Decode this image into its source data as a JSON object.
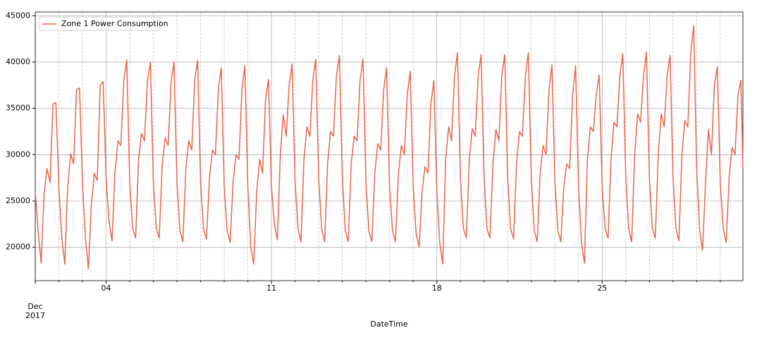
{
  "chart_data": {
    "type": "line",
    "xlabel": "DateTime",
    "x": [
      "2017-12-01 00:00",
      "2017-12-01 03:00",
      "2017-12-01 06:00",
      "2017-12-01 09:00",
      "2017-12-01 12:00",
      "2017-12-01 15:00",
      "2017-12-01 18:00",
      "2017-12-01 21:00",
      "2017-12-02 00:00",
      "2017-12-02 03:00",
      "2017-12-02 06:00",
      "2017-12-02 09:00",
      "2017-12-02 12:00",
      "2017-12-02 15:00",
      "2017-12-02 18:00",
      "2017-12-02 21:00",
      "2017-12-03 00:00",
      "2017-12-03 03:00",
      "2017-12-03 06:00",
      "2017-12-03 09:00",
      "2017-12-03 12:00",
      "2017-12-03 15:00",
      "2017-12-03 18:00",
      "2017-12-03 21:00",
      "2017-12-04 00:00",
      "2017-12-04 03:00",
      "2017-12-04 06:00",
      "2017-12-04 09:00",
      "2017-12-04 12:00",
      "2017-12-04 15:00",
      "2017-12-04 18:00",
      "2017-12-04 21:00",
      "2017-12-05 00:00",
      "2017-12-05 03:00",
      "2017-12-05 06:00",
      "2017-12-05 09:00",
      "2017-12-05 12:00",
      "2017-12-05 15:00",
      "2017-12-05 18:00",
      "2017-12-05 21:00",
      "2017-12-06 00:00",
      "2017-12-06 03:00",
      "2017-12-06 06:00",
      "2017-12-06 09:00",
      "2017-12-06 12:00",
      "2017-12-06 15:00",
      "2017-12-06 18:00",
      "2017-12-06 21:00",
      "2017-12-07 00:00",
      "2017-12-07 03:00",
      "2017-12-07 06:00",
      "2017-12-07 09:00",
      "2017-12-07 12:00",
      "2017-12-07 15:00",
      "2017-12-07 18:00",
      "2017-12-07 21:00",
      "2017-12-08 00:00",
      "2017-12-08 03:00",
      "2017-12-08 06:00",
      "2017-12-08 09:00",
      "2017-12-08 12:00",
      "2017-12-08 15:00",
      "2017-12-08 18:00",
      "2017-12-08 21:00",
      "2017-12-09 00:00",
      "2017-12-09 03:00",
      "2017-12-09 06:00",
      "2017-12-09 09:00",
      "2017-12-09 12:00",
      "2017-12-09 15:00",
      "2017-12-09 18:00",
      "2017-12-09 21:00",
      "2017-12-10 00:00",
      "2017-12-10 03:00",
      "2017-12-10 06:00",
      "2017-12-10 09:00",
      "2017-12-10 12:00",
      "2017-12-10 15:00",
      "2017-12-10 18:00",
      "2017-12-10 21:00",
      "2017-12-11 00:00",
      "2017-12-11 03:00",
      "2017-12-11 06:00",
      "2017-12-11 09:00",
      "2017-12-11 12:00",
      "2017-12-11 15:00",
      "2017-12-11 18:00",
      "2017-12-11 21:00",
      "2017-12-12 00:00",
      "2017-12-12 03:00",
      "2017-12-12 06:00",
      "2017-12-12 09:00",
      "2017-12-12 12:00",
      "2017-12-12 15:00",
      "2017-12-12 18:00",
      "2017-12-12 21:00",
      "2017-12-13 00:00",
      "2017-12-13 03:00",
      "2017-12-13 06:00",
      "2017-12-13 09:00",
      "2017-12-13 12:00",
      "2017-12-13 15:00",
      "2017-12-13 18:00",
      "2017-12-13 21:00",
      "2017-12-14 00:00",
      "2017-12-14 03:00",
      "2017-12-14 06:00",
      "2017-12-14 09:00",
      "2017-12-14 12:00",
      "2017-12-14 15:00",
      "2017-12-14 18:00",
      "2017-12-14 21:00",
      "2017-12-15 00:00",
      "2017-12-15 03:00",
      "2017-12-15 06:00",
      "2017-12-15 09:00",
      "2017-12-15 12:00",
      "2017-12-15 15:00",
      "2017-12-15 18:00",
      "2017-12-15 21:00",
      "2017-12-16 00:00",
      "2017-12-16 03:00",
      "2017-12-16 06:00",
      "2017-12-16 09:00",
      "2017-12-16 12:00",
      "2017-12-16 15:00",
      "2017-12-16 18:00",
      "2017-12-16 21:00",
      "2017-12-17 00:00",
      "2017-12-17 03:00",
      "2017-12-17 06:00",
      "2017-12-17 09:00",
      "2017-12-17 12:00",
      "2017-12-17 15:00",
      "2017-12-17 18:00",
      "2017-12-17 21:00",
      "2017-12-18 00:00",
      "2017-12-18 03:00",
      "2017-12-18 06:00",
      "2017-12-18 09:00",
      "2017-12-18 12:00",
      "2017-12-18 15:00",
      "2017-12-18 18:00",
      "2017-12-18 21:00",
      "2017-12-19 00:00",
      "2017-12-19 03:00",
      "2017-12-19 06:00",
      "2017-12-19 09:00",
      "2017-12-19 12:00",
      "2017-12-19 15:00",
      "2017-12-19 18:00",
      "2017-12-19 21:00",
      "2017-12-20 00:00",
      "2017-12-20 03:00",
      "2017-12-20 06:00",
      "2017-12-20 09:00",
      "2017-12-20 12:00",
      "2017-12-20 15:00",
      "2017-12-20 18:00",
      "2017-12-20 21:00",
      "2017-12-21 00:00",
      "2017-12-21 03:00",
      "2017-12-21 06:00",
      "2017-12-21 09:00",
      "2017-12-21 12:00",
      "2017-12-21 15:00",
      "2017-12-21 18:00",
      "2017-12-21 21:00",
      "2017-12-22 00:00",
      "2017-12-22 03:00",
      "2017-12-22 06:00",
      "2017-12-22 09:00",
      "2017-12-22 12:00",
      "2017-12-22 15:00",
      "2017-12-22 18:00",
      "2017-12-22 21:00",
      "2017-12-23 00:00",
      "2017-12-23 03:00",
      "2017-12-23 06:00",
      "2017-12-23 09:00",
      "2017-12-23 12:00",
      "2017-12-23 15:00",
      "2017-12-23 18:00",
      "2017-12-23 21:00",
      "2017-12-24 00:00",
      "2017-12-24 03:00",
      "2017-12-24 06:00",
      "2017-12-24 09:00",
      "2017-12-24 12:00",
      "2017-12-24 15:00",
      "2017-12-24 18:00",
      "2017-12-24 21:00",
      "2017-12-25 00:00",
      "2017-12-25 03:00",
      "2017-12-25 06:00",
      "2017-12-25 09:00",
      "2017-12-25 12:00",
      "2017-12-25 15:00",
      "2017-12-25 18:00",
      "2017-12-25 21:00",
      "2017-12-26 00:00",
      "2017-12-26 03:00",
      "2017-12-26 06:00",
      "2017-12-26 09:00",
      "2017-12-26 12:00",
      "2017-12-26 15:00",
      "2017-12-26 18:00",
      "2017-12-26 21:00",
      "2017-12-27 00:00",
      "2017-12-27 03:00",
      "2017-12-27 06:00",
      "2017-12-27 09:00",
      "2017-12-27 12:00",
      "2017-12-27 15:00",
      "2017-12-27 18:00",
      "2017-12-27 21:00",
      "2017-12-28 00:00",
      "2017-12-28 03:00",
      "2017-12-28 06:00",
      "2017-12-28 09:00",
      "2017-12-28 12:00",
      "2017-12-28 15:00",
      "2017-12-28 18:00",
      "2017-12-28 21:00",
      "2017-12-29 00:00",
      "2017-12-29 03:00",
      "2017-12-29 06:00",
      "2017-12-29 09:00",
      "2017-12-29 12:00",
      "2017-12-29 15:00",
      "2017-12-29 18:00",
      "2017-12-29 21:00",
      "2017-12-30 00:00",
      "2017-12-30 03:00",
      "2017-12-30 06:00",
      "2017-12-30 09:00",
      "2017-12-30 12:00",
      "2017-12-30 15:00",
      "2017-12-30 18:00",
      "2017-12-30 21:00",
      "2017-12-30 23:00"
    ],
    "series": [
      {
        "name": "Zone 1 Power Consumption",
        "color": "#e8654a",
        "values": [
          26000,
          21700,
          18300,
          25800,
          28500,
          27000,
          35500,
          35600,
          26500,
          21000,
          18200,
          26500,
          30100,
          29000,
          37000,
          37200,
          27000,
          21000,
          17700,
          24500,
          28000,
          27200,
          37500,
          37900,
          27500,
          22800,
          20700,
          28000,
          31500,
          31000,
          38000,
          40200,
          27000,
          22000,
          21000,
          29500,
          32300,
          31500,
          38000,
          40000,
          27000,
          22000,
          21000,
          29000,
          31800,
          31000,
          37800,
          40000,
          27000,
          21800,
          20600,
          28500,
          31500,
          30500,
          38000,
          40200,
          27000,
          22000,
          20900,
          27500,
          30500,
          30000,
          37000,
          39400,
          26500,
          21800,
          20500,
          27000,
          30000,
          29500,
          37000,
          39600,
          26500,
          20000,
          18200,
          26000,
          29500,
          28000,
          36000,
          38100,
          26500,
          22500,
          20800,
          30000,
          34300,
          32000,
          37500,
          39800,
          27000,
          22000,
          20600,
          29500,
          33000,
          32000,
          38000,
          40300,
          27500,
          22000,
          20600,
          29000,
          32500,
          32000,
          38500,
          40700,
          27500,
          21800,
          20600,
          29000,
          32000,
          31500,
          38000,
          40300,
          27000,
          21800,
          20600,
          28000,
          31200,
          30500,
          37000,
          39400,
          26500,
          21800,
          20600,
          28000,
          31000,
          30000,
          36500,
          39000,
          26500,
          21500,
          20000,
          26000,
          28700,
          28000,
          35500,
          38000,
          26000,
          20500,
          18200,
          29500,
          33000,
          31500,
          38500,
          41000,
          27500,
          22000,
          21000,
          29500,
          32800,
          32000,
          38500,
          40800,
          27500,
          22000,
          21000,
          29000,
          32700,
          31500,
          38500,
          40800,
          27500,
          22000,
          20900,
          29000,
          32500,
          32000,
          38500,
          41000,
          27500,
          21800,
          20600,
          28000,
          31000,
          30000,
          37000,
          39700,
          27000,
          21800,
          20600,
          26500,
          29000,
          28500,
          36500,
          39600,
          26500,
          20500,
          18300,
          29500,
          33000,
          32500,
          36500,
          38600,
          26500,
          22000,
          21000,
          29500,
          33500,
          33000,
          38500,
          40900,
          27500,
          22000,
          20600,
          30000,
          34400,
          33500,
          38500,
          41100,
          27500,
          22000,
          21000,
          30000,
          34400,
          33000,
          38500,
          40700,
          27500,
          22000,
          20700,
          30000,
          33700,
          33000,
          41000,
          43900,
          28500,
          22000,
          19700,
          27000,
          32700,
          30000,
          37500,
          39500,
          27000,
          22000,
          20500,
          27500,
          30800,
          30000,
          36500,
          38000,
          28500
        ]
      }
    ],
    "xlim": [
      "2017-12-01 00:00",
      "2017-12-30 23:00"
    ],
    "xticks": [
      {
        "value": "2017-12-01",
        "label": "Dec\n2017"
      },
      {
        "value": "2017-12-04",
        "label": "04"
      },
      {
        "value": "2017-12-11",
        "label": "11"
      },
      {
        "value": "2017-12-18",
        "label": "18"
      },
      {
        "value": "2017-12-25",
        "label": "25"
      }
    ],
    "xminorticks": [
      "2017-12-02",
      "2017-12-03",
      "2017-12-05",
      "2017-12-06",
      "2017-12-07",
      "2017-12-08",
      "2017-12-09",
      "2017-12-10",
      "2017-12-12",
      "2017-12-13",
      "2017-12-14",
      "2017-12-15",
      "2017-12-16",
      "2017-12-17",
      "2017-12-19",
      "2017-12-20",
      "2017-12-21",
      "2017-12-22",
      "2017-12-23",
      "2017-12-24",
      "2017-12-26",
      "2017-12-27",
      "2017-12-28",
      "2017-12-29",
      "2017-12-30"
    ],
    "ylim": [
      16400,
      45400
    ],
    "yticks": [
      20000,
      25000,
      30000,
      35000,
      40000,
      45000
    ],
    "grid": true,
    "legend": "upper left"
  }
}
